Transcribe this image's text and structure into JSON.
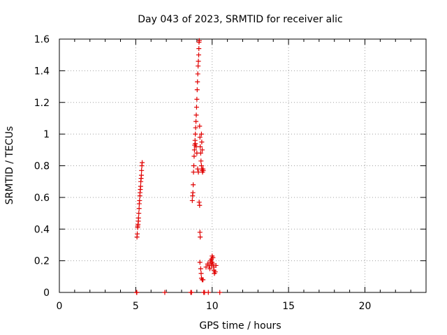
{
  "chart_data": {
    "type": "scatter",
    "title": "Day 043 of 2023, SRMTID for receiver alic",
    "xlabel": "GPS time / hours",
    "ylabel": "SRMTID / TECUs",
    "xlim": [
      0,
      24
    ],
    "ylim": [
      0,
      1.6
    ],
    "xticks": [
      0,
      5,
      10,
      15,
      20
    ],
    "xtick_labels": [
      "0",
      "5",
      "10",
      "15",
      "20"
    ],
    "yticks": [
      0,
      0.2,
      0.4,
      0.6,
      0.8,
      1.0,
      1.2,
      1.4,
      1.6
    ],
    "ytick_labels": [
      "0",
      "0.2",
      "0.4",
      "0.6",
      "0.8",
      "1",
      "1.2",
      "1.4",
      "1.6"
    ],
    "grid": true,
    "marker": "+",
    "color": "#e00000",
    "series": [
      {
        "name": "SRMTID",
        "points": [
          [
            5.05,
            0.0
          ],
          [
            5.07,
            0.0
          ],
          [
            5.08,
            0.35
          ],
          [
            5.1,
            0.37
          ],
          [
            5.12,
            0.41
          ],
          [
            5.13,
            0.42
          ],
          [
            5.15,
            0.43
          ],
          [
            5.17,
            0.45
          ],
          [
            5.18,
            0.47
          ],
          [
            5.2,
            0.5
          ],
          [
            5.22,
            0.53
          ],
          [
            5.23,
            0.56
          ],
          [
            5.25,
            0.58
          ],
          [
            5.27,
            0.61
          ],
          [
            5.28,
            0.63
          ],
          [
            5.3,
            0.65
          ],
          [
            5.32,
            0.67
          ],
          [
            5.33,
            0.7
          ],
          [
            5.35,
            0.72
          ],
          [
            5.37,
            0.74
          ],
          [
            5.38,
            0.77
          ],
          [
            5.4,
            0.8
          ],
          [
            5.42,
            0.82
          ],
          [
            6.9,
            0.0
          ],
          [
            8.6,
            0.0
          ],
          [
            8.65,
            0.0
          ],
          [
            8.7,
            0.58
          ],
          [
            8.72,
            0.61
          ],
          [
            8.74,
            0.63
          ],
          [
            8.76,
            0.68
          ],
          [
            8.78,
            0.76
          ],
          [
            8.8,
            0.8
          ],
          [
            8.82,
            0.86
          ],
          [
            8.84,
            0.9
          ],
          [
            8.86,
            0.93
          ],
          [
            8.88,
            0.96
          ],
          [
            8.9,
            1.0
          ],
          [
            8.92,
            1.04
          ],
          [
            8.94,
            1.08
          ],
          [
            8.96,
            1.12
          ],
          [
            8.98,
            1.17
          ],
          [
            9.0,
            1.22
          ],
          [
            9.02,
            1.28
          ],
          [
            9.04,
            1.33
          ],
          [
            9.06,
            1.38
          ],
          [
            9.08,
            1.43
          ],
          [
            9.1,
            1.46
          ],
          [
            9.12,
            1.5
          ],
          [
            9.13,
            1.54
          ],
          [
            9.14,
            1.58
          ],
          [
            9.16,
            1.59
          ],
          [
            8.9,
            0.94
          ],
          [
            8.95,
            0.92
          ],
          [
            9.0,
            0.88
          ],
          [
            9.05,
            0.78
          ],
          [
            9.1,
            0.76
          ],
          [
            9.15,
            0.57
          ],
          [
            9.18,
            0.55
          ],
          [
            9.2,
            0.38
          ],
          [
            9.22,
            0.35
          ],
          [
            9.18,
            1.05
          ],
          [
            9.2,
            0.98
          ],
          [
            9.22,
            0.92
          ],
          [
            9.25,
            0.88
          ],
          [
            9.27,
            0.83
          ],
          [
            9.3,
            0.8
          ],
          [
            9.32,
            0.78
          ],
          [
            9.35,
            0.77
          ],
          [
            9.37,
            0.76
          ],
          [
            9.4,
            0.78
          ],
          [
            9.42,
            0.77
          ],
          [
            9.3,
            1.0
          ],
          [
            9.32,
            0.95
          ],
          [
            9.35,
            0.9
          ],
          [
            9.2,
            0.19
          ],
          [
            9.25,
            0.15
          ],
          [
            9.28,
            0.12
          ],
          [
            9.3,
            0.09
          ],
          [
            9.35,
            0.08
          ],
          [
            9.4,
            0.08
          ],
          [
            9.45,
            0.0
          ],
          [
            9.5,
            0.0
          ],
          [
            9.6,
            0.16
          ],
          [
            9.7,
            0.18
          ],
          [
            9.75,
            0.0
          ],
          [
            9.8,
            0.17
          ],
          [
            9.85,
            0.15
          ],
          [
            9.9,
            0.19
          ],
          [
            9.95,
            0.21
          ],
          [
            10.0,
            0.23
          ],
          [
            10.05,
            0.18
          ],
          [
            10.1,
            0.16
          ],
          [
            10.12,
            0.14
          ],
          [
            10.15,
            0.12
          ],
          [
            10.2,
            0.13
          ],
          [
            10.25,
            0.17
          ],
          [
            9.9,
            0.2
          ],
          [
            9.95,
            0.17
          ],
          [
            10.0,
            0.19
          ],
          [
            10.05,
            0.22
          ],
          [
            10.5,
            0.0
          ]
        ]
      }
    ]
  }
}
